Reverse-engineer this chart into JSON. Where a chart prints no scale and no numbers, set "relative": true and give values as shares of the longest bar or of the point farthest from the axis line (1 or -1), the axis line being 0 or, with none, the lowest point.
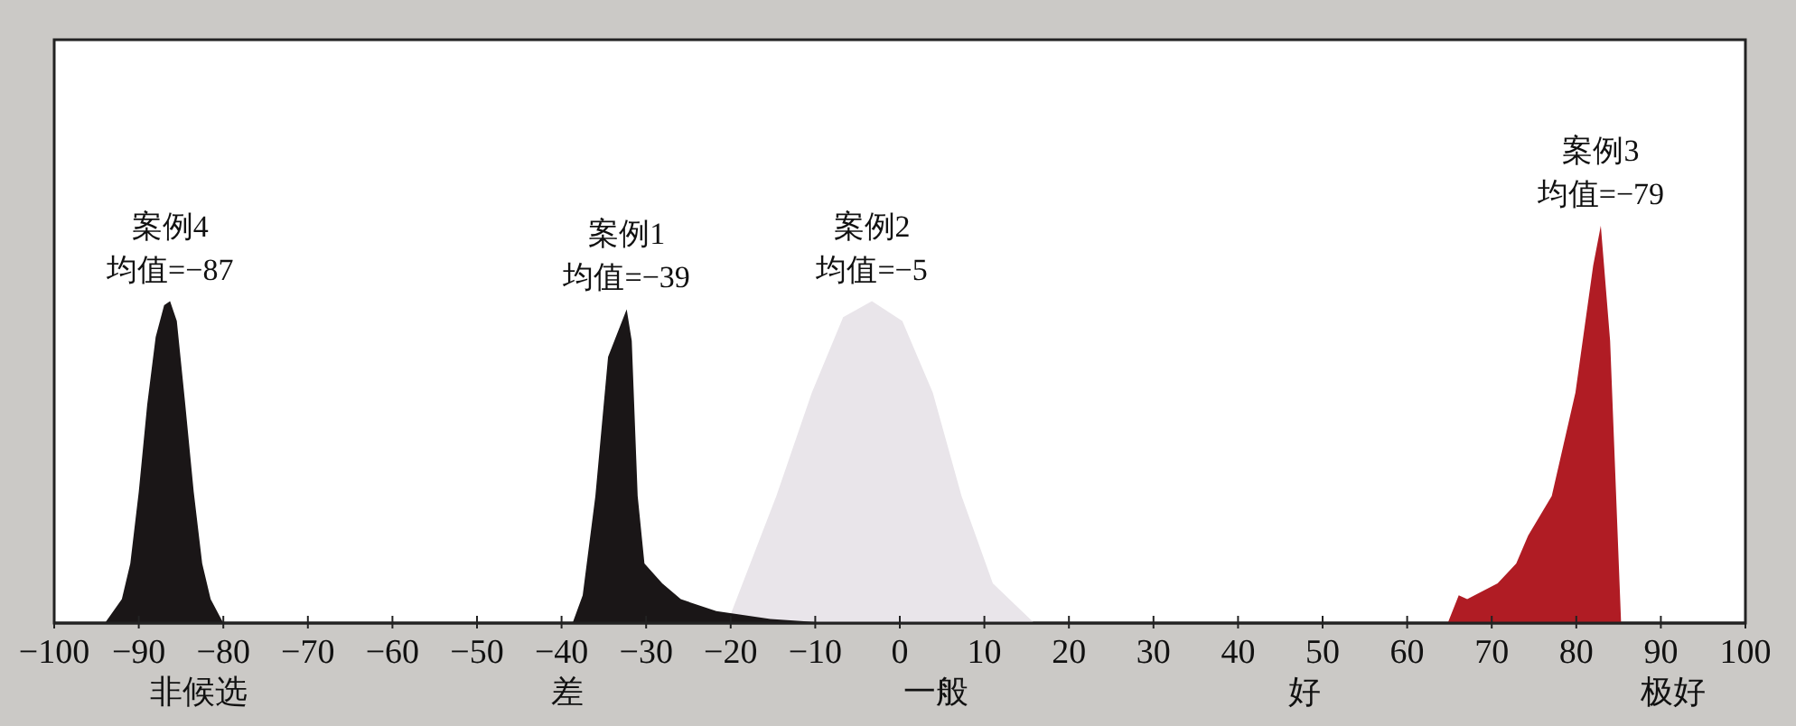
{
  "chart_data": {
    "type": "area",
    "relative": true,
    "xlim": [
      -100,
      100
    ],
    "xticks": [
      -100,
      -90,
      -80,
      -70,
      -60,
      -50,
      -40,
      -30,
      -20,
      -10,
      0,
      10,
      20,
      30,
      40,
      50,
      60,
      70,
      80,
      90,
      100
    ],
    "legend": false,
    "grid": false,
    "series": [
      {
        "name": "案例4",
        "color": "#1a1617",
        "x": [
          -94,
          -92,
          -91,
          -90,
          -89,
          -88,
          -87,
          -86.3,
          -85.5,
          -84.5,
          -83.5,
          -82.5,
          -81.5,
          -80
        ],
        "values": [
          0,
          0.06,
          0.15,
          0.33,
          0.55,
          0.72,
          0.8,
          0.81,
          0.76,
          0.55,
          0.33,
          0.15,
          0.06,
          0
        ]
      },
      {
        "name": "案例2",
        "color": "#e9e5ea",
        "x": [
          -20.4,
          -14.6,
          -10.4,
          -6.7,
          -3.3,
          0.3,
          3.9,
          7.3,
          11,
          15.9
        ],
        "values": [
          0,
          0.32,
          0.58,
          0.77,
          0.81,
          0.76,
          0.58,
          0.32,
          0.1,
          0
        ]
      },
      {
        "name": "案例1",
        "color": "#1a1617",
        "x": [
          -38.7,
          -37.5,
          -36,
          -34.5,
          -32.3,
          -31.7,
          -31,
          -30.2,
          -28.1,
          -25.9,
          -21.7,
          -15.3,
          -8.2
        ],
        "values": [
          0,
          0.07,
          0.32,
          0.67,
          0.79,
          0.71,
          0.32,
          0.15,
          0.1,
          0.06,
          0.03,
          0.01,
          0
        ]
      },
      {
        "name": "案例3",
        "color": "#b01c24",
        "x": [
          64.8,
          66.1,
          67.1,
          70.7,
          72.9,
          74.3,
          77.1,
          79.9,
          82,
          82.9,
          84,
          85.3
        ],
        "values": [
          0,
          0.07,
          0.06,
          0.1,
          0.15,
          0.22,
          0.32,
          0.58,
          0.9,
          1,
          0.71,
          0
        ]
      }
    ],
    "annotations": [
      {
        "text": "均值=−87",
        "x": -86.3,
        "y": 0.81
      },
      {
        "text": "均值=−39",
        "x": -32.3,
        "y": 0.79
      },
      {
        "text": "均值=−5",
        "x": -3.3,
        "y": 0.81
      },
      {
        "text": "均值=−79",
        "x": 82.9,
        "y": 1
      },
      "非候选",
      "差",
      "一般",
      "好",
      "极好"
    ]
  }
}
